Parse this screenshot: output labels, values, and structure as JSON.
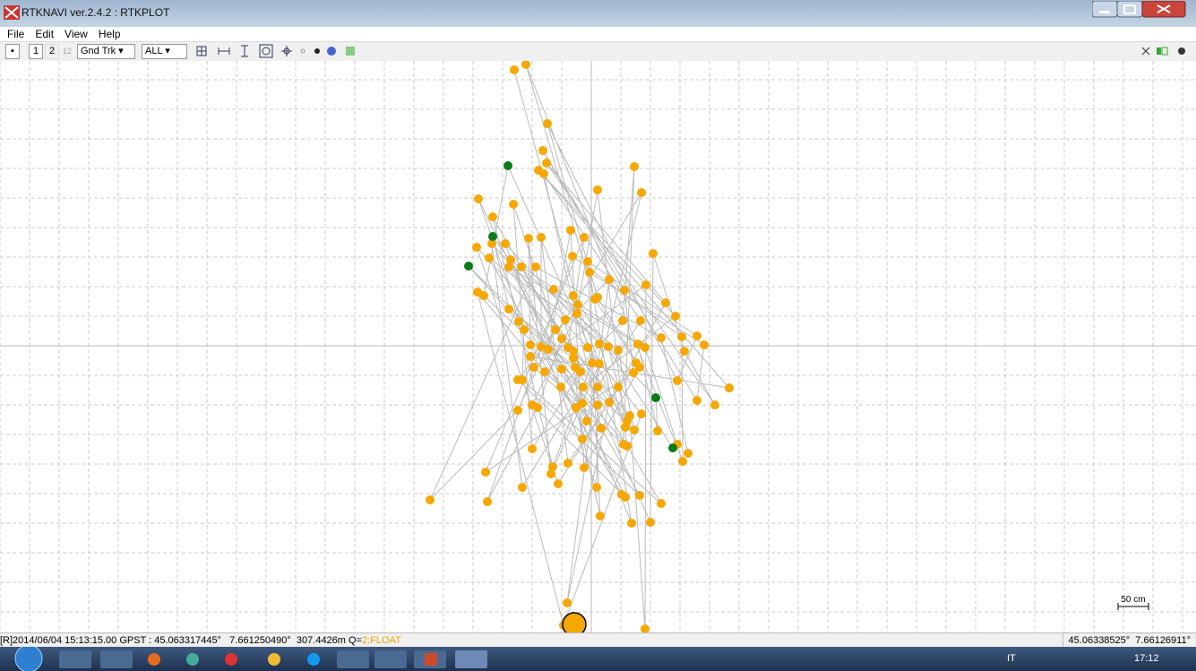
{
  "window": {
    "title": "RTKNAVI ver.2.4.2 : RTKPLOT"
  },
  "menu": [
    "File",
    "Edit",
    "View",
    "Help"
  ],
  "toolbar": {
    "buttons": [
      "1",
      "2",
      "12"
    ],
    "plot_type": "Gnd Trk",
    "satellites": "ALL"
  },
  "plot": {
    "scale_label": "50 cm"
  },
  "status": {
    "left": "[R]2014/06/04 15:13:15.00 GPST : 45.063317445°   7.661250490°  307.4426m Q=",
    "quality": "2:FLOAT",
    "right": "45.06338525°  7.66126911°"
  },
  "taskbar": {
    "language": "IT",
    "clock": "17:12"
  }
}
